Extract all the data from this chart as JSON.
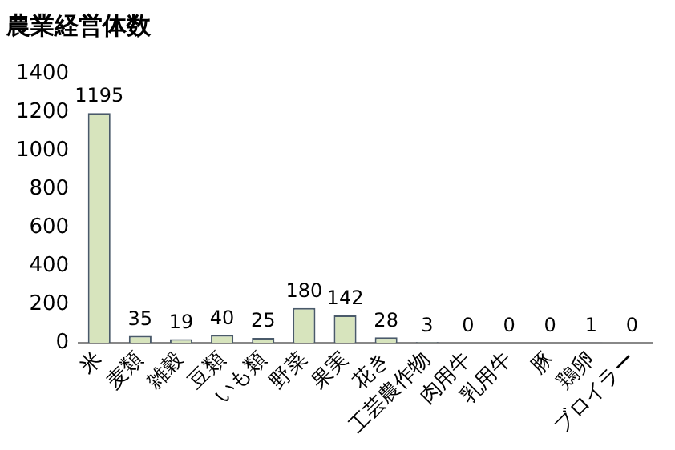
{
  "chart_data": {
    "type": "bar",
    "title": "農業経営体数",
    "categories": [
      "米",
      "麦類",
      "雑穀",
      "豆類",
      "いも類",
      "野菜",
      "果実",
      "花き",
      "工芸農作物",
      "肉用牛",
      "乳用牛",
      "豚",
      "鶏卵",
      "ブロイラー"
    ],
    "values": [
      1195,
      35,
      19,
      40,
      25,
      180,
      142,
      28,
      3,
      0,
      0,
      0,
      1,
      0
    ],
    "color": "#d7e4bd",
    "ylim": [
      0,
      1400
    ],
    "yticks": [
      0,
      200,
      400,
      600,
      800,
      1000,
      1200,
      1400
    ],
    "data_labels": true,
    "grid": false,
    "legend": false
  }
}
